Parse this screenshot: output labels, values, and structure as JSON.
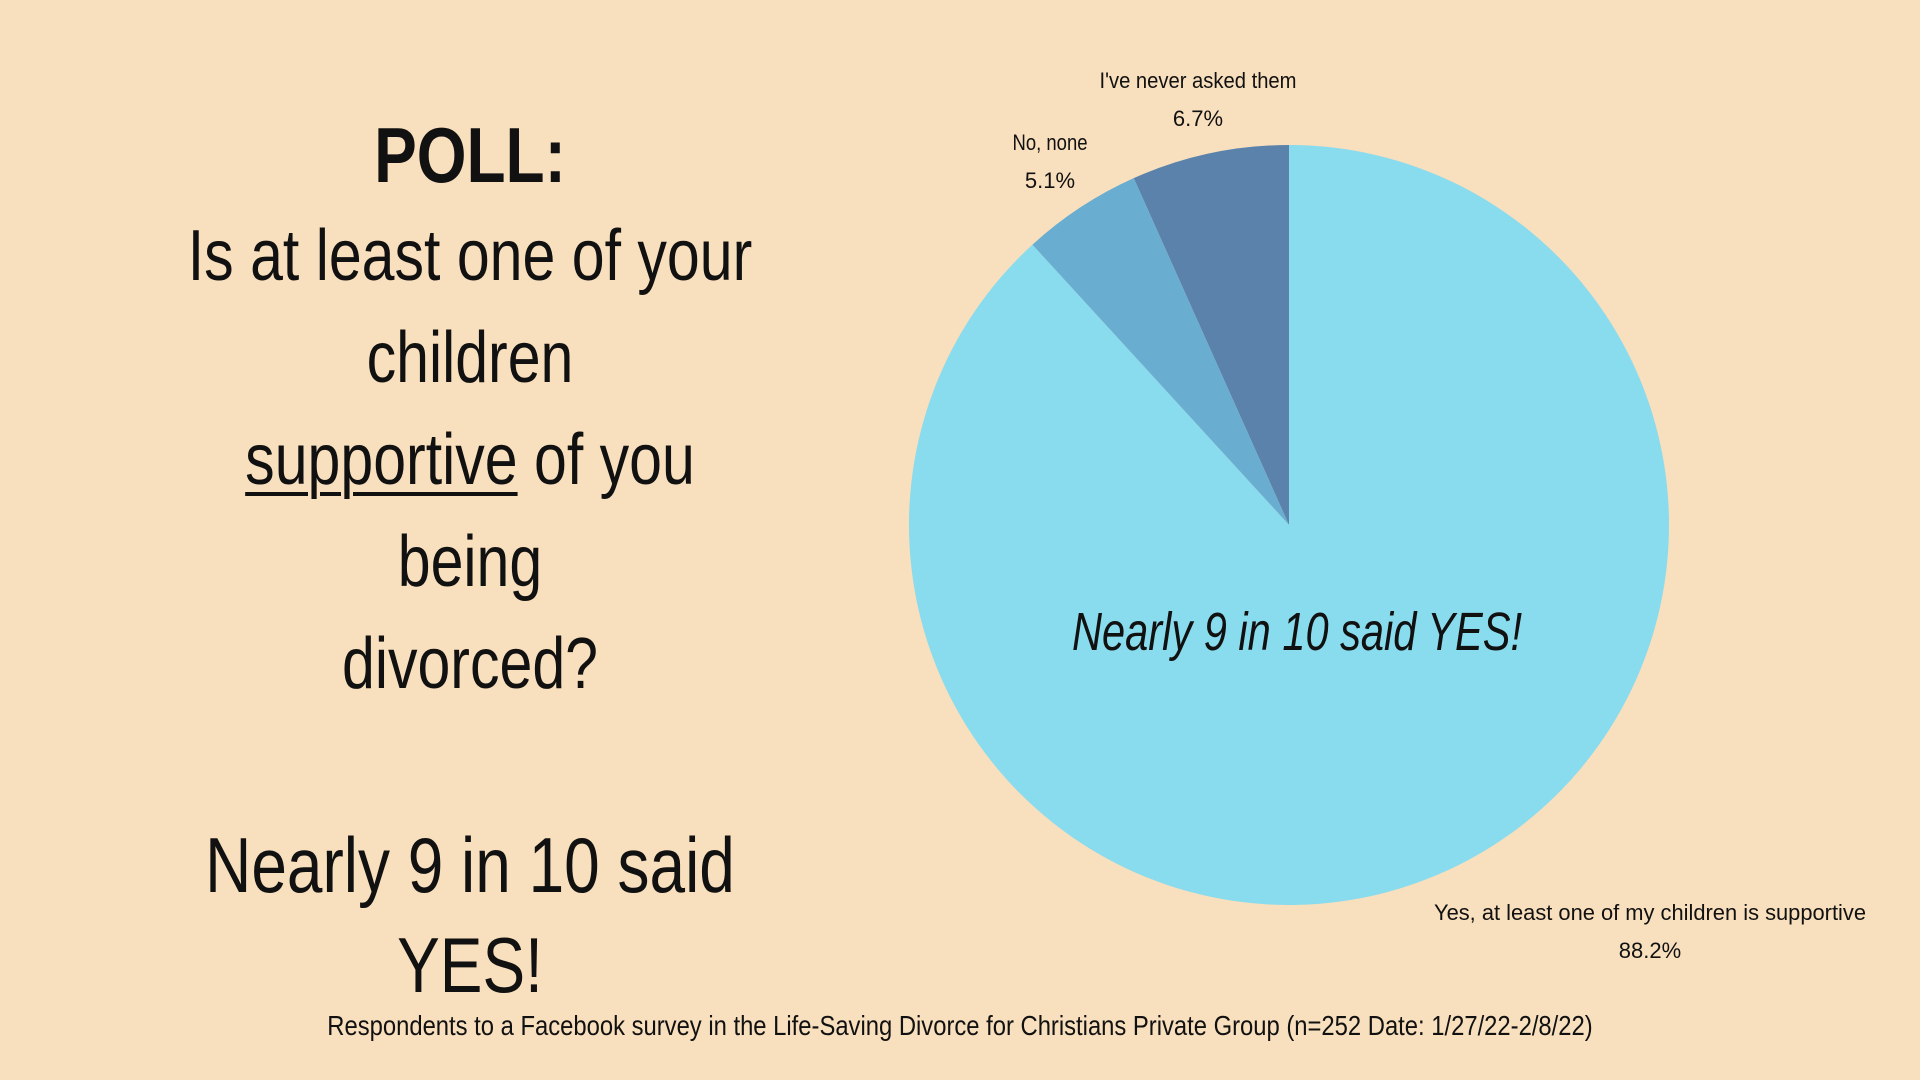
{
  "colors": {
    "background": "#f8dfbd",
    "text": "#111111"
  },
  "left_panel": {
    "poll_label": "POLL:",
    "question_line1": "Is at least one of your",
    "question_line2": "children",
    "question_underlined": "supportive",
    "question_line3_rest": " of you being",
    "question_line4": "divorced?",
    "answer": "Nearly 9 in 10 said YES!"
  },
  "footnote": "Respondents to a Facebook survey in the Life-Saving Divorce for Christians Private Group  (n=252  Date: 1/27/22-2/8/22)",
  "chart_data": {
    "type": "pie",
    "center_annotation": "Nearly 9 in 10 said YES!",
    "slices": [
      {
        "label": "I've never asked them",
        "value_label": "6.7%",
        "value": 6.7,
        "color": "#5b82ab"
      },
      {
        "label": "No, none",
        "value_label": "5.1%",
        "value": 5.1,
        "color": "#69aed0"
      },
      {
        "label": "Yes, at least one of my children is supportive",
        "value_label": "88.2%",
        "value": 88.2,
        "color": "#89dbee"
      }
    ]
  }
}
